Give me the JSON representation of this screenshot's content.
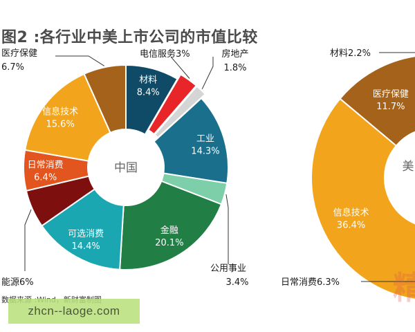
{
  "title": "图2 :各行业中美上市公司的市值比较",
  "source": "数据来源 :Wind，新财富制图",
  "watermark": "zhcn--laoge.com",
  "watermark_glyph": "精",
  "chart_data": [
    {
      "type": "pie",
      "center_label": "中国",
      "slices": [
        {
          "label": "材料",
          "value": 8.4,
          "color": "#0f4a67"
        },
        {
          "label": "电信服务",
          "value": 3.0,
          "color": "#e8262a",
          "exploded": true
        },
        {
          "label": "房地产",
          "value": 1.8,
          "color": "#d5d5d5",
          "exploded": true
        },
        {
          "label": "工业",
          "value": 14.3,
          "color": "#1a6f8c"
        },
        {
          "label": "公用事业",
          "value": 3.4,
          "color": "#7ccfa9"
        },
        {
          "label": "金融",
          "value": 20.1,
          "color": "#217f46"
        },
        {
          "label": "可选消费",
          "value": 14.4,
          "color": "#1aa7b2"
        },
        {
          "label": "能源",
          "value": 6.0,
          "color": "#7d0f0f"
        },
        {
          "label": "日常消费",
          "value": 6.4,
          "color": "#e2551f"
        },
        {
          "label": "信息技术",
          "value": 15.6,
          "color": "#f2a51c"
        },
        {
          "label": "医疗保健",
          "value": 6.7,
          "color": "#a4621a"
        }
      ],
      "labels": {
        "材料": {
          "name": "材料",
          "pct": "8.4%"
        },
        "电信服务": {
          "text": "电信服务3%"
        },
        "房地产": {
          "name": "房地产",
          "pct": "1.8%"
        },
        "工业": {
          "name": "工业",
          "pct": "14.3%"
        },
        "公用事业": {
          "name": "公用事业",
          "pct": "3.4%"
        },
        "金融": {
          "name": "金融",
          "pct": "20.1%"
        },
        "可选消费": {
          "name": "可选消费",
          "pct": "14.4%"
        },
        "能源": {
          "text": "能源6%"
        },
        "日常消费": {
          "name": "日常消费",
          "pct": "6.4%"
        },
        "信息技术": {
          "name": "信息技术",
          "pct": "15.6%"
        },
        "医疗保健": {
          "name": "医疗保健",
          "pct": "6.7%"
        }
      }
    },
    {
      "type": "pie",
      "center_label": "美",
      "partial": true,
      "slices": [
        {
          "label": "材料",
          "value": 2.2,
          "color": "#0f4a67"
        },
        {
          "label": "医疗保健",
          "value": 11.7,
          "color": "#a4621a"
        },
        {
          "label": "信息技术",
          "value": 36.4,
          "color": "#f2a51c"
        },
        {
          "label": "日常消费",
          "value": 6.3,
          "color": "#e2551f"
        }
      ],
      "labels": {
        "材料": {
          "text": "材料2.2%"
        },
        "医疗保健": {
          "name": "医疗保健",
          "pct": "11.7%"
        },
        "信息技术": {
          "name": "信息技术",
          "pct": "36.4%"
        },
        "日常消费": {
          "text": "日常消费6.3%"
        }
      }
    }
  ]
}
